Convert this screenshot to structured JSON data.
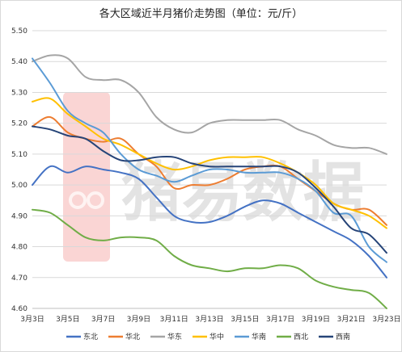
{
  "chart_data": {
    "type": "line",
    "title": "各大区域近半月猪价走势图（单位：元/斤）",
    "x": [
      "3月3日",
      "3月4日",
      "3月5日",
      "3月6日",
      "3月7日",
      "3月8日",
      "3月9日",
      "3月10日",
      "3月11日",
      "3月12日",
      "3月13日",
      "3月14日",
      "3月15日",
      "3月16日",
      "3月17日",
      "3月18日",
      "3月19日",
      "3月20日",
      "3月21日",
      "3月22日",
      "3月23日"
    ],
    "x_tick_labels": [
      "3月3日",
      "3月5日",
      "3月7日",
      "3月9日",
      "3月11日",
      "3月13日",
      "3月15日",
      "3月17日",
      "3月19日",
      "3月21日",
      "3月23日"
    ],
    "ylim": [
      4.6,
      5.5
    ],
    "y_ticks": [
      "4.60",
      "4.70",
      "4.80",
      "4.90",
      "5.00",
      "5.10",
      "5.20",
      "5.30",
      "5.40",
      "5.50"
    ],
    "grid": "horizontal",
    "legend_position": "bottom",
    "series": [
      {
        "name": "东北",
        "color": "#4472C4",
        "values": [
          5.0,
          5.06,
          5.04,
          5.06,
          5.05,
          5.04,
          5.02,
          4.96,
          4.9,
          4.88,
          4.88,
          4.9,
          4.93,
          4.95,
          4.94,
          4.91,
          4.88,
          4.85,
          4.82,
          4.77,
          4.7
        ]
      },
      {
        "name": "华北",
        "color": "#ED7D31",
        "values": [
          5.19,
          5.22,
          5.17,
          5.15,
          5.14,
          5.15,
          5.1,
          5.06,
          4.99,
          5.0,
          5.0,
          5.02,
          5.05,
          5.06,
          5.06,
          5.02,
          4.98,
          4.94,
          4.92,
          4.92,
          4.87
        ]
      },
      {
        "name": "华东",
        "color": "#A5A5A5",
        "values": [
          5.4,
          5.42,
          5.41,
          5.35,
          5.34,
          5.34,
          5.3,
          5.22,
          5.18,
          5.17,
          5.2,
          5.21,
          5.21,
          5.21,
          5.21,
          5.18,
          5.16,
          5.13,
          5.12,
          5.12,
          5.1
        ]
      },
      {
        "name": "华中",
        "color": "#FFC000",
        "values": [
          5.27,
          5.28,
          5.23,
          5.19,
          5.15,
          5.13,
          5.1,
          5.07,
          5.05,
          5.06,
          5.08,
          5.09,
          5.09,
          5.09,
          5.07,
          5.04,
          5.0,
          4.94,
          4.92,
          4.9,
          4.86
        ]
      },
      {
        "name": "华南",
        "color": "#5B9BD5",
        "values": [
          5.41,
          5.33,
          5.24,
          5.2,
          5.17,
          5.1,
          5.05,
          5.03,
          5.01,
          5.03,
          5.05,
          5.05,
          5.04,
          5.04,
          5.04,
          5.02,
          4.98,
          4.91,
          4.9,
          4.8,
          4.75
        ]
      },
      {
        "name": "西北",
        "color": "#70AD47",
        "values": [
          4.92,
          4.91,
          4.87,
          4.83,
          4.82,
          4.83,
          4.83,
          4.82,
          4.77,
          4.74,
          4.73,
          4.72,
          4.73,
          4.73,
          4.74,
          4.73,
          4.69,
          4.67,
          4.66,
          4.65,
          4.6
        ]
      },
      {
        "name": "西南",
        "color": "#264478",
        "values": [
          5.19,
          5.18,
          5.16,
          5.15,
          5.11,
          5.08,
          5.08,
          5.09,
          5.09,
          5.07,
          5.06,
          5.06,
          5.06,
          5.06,
          5.06,
          5.04,
          4.99,
          4.93,
          4.86,
          4.84,
          4.78
        ]
      }
    ]
  },
  "watermark": {
    "text": "猪易数据",
    "logo_color": "#E8413B"
  }
}
